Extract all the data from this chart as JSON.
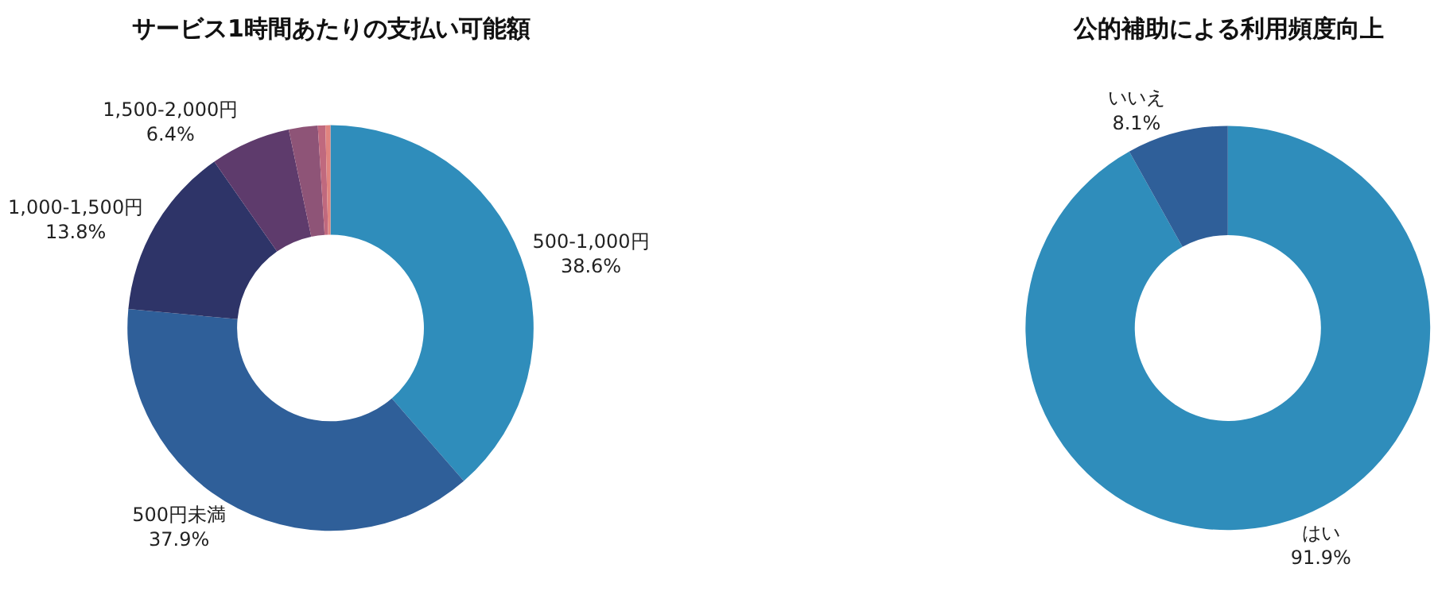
{
  "chart_data": [
    {
      "type": "donut",
      "title": "サービス1時間あたりの支払い可能額",
      "categories": [
        "500-1,000円",
        "500円未満",
        "1,000-1,500円",
        "1,500-2,000円",
        null,
        null,
        null
      ],
      "values": [
        38.6,
        37.9,
        13.8,
        6.4,
        2.3,
        0.6,
        0.4
      ],
      "value_labels": [
        "38.6%",
        "37.9%",
        "13.8%",
        "6.4%",
        null,
        null,
        null
      ],
      "colors": [
        "#2f8dbb",
        "#2f5f99",
        "#2e3468",
        "#5e3b6c",
        "#8e5477",
        "#c0697e",
        "#e0847f"
      ],
      "legend": false
    },
    {
      "type": "donut",
      "title": "公的補助による利用頻度向上",
      "categories": [
        "はい",
        "いいえ"
      ],
      "values": [
        91.9,
        8.1
      ],
      "value_labels": [
        "91.9%",
        "8.1%"
      ],
      "colors": [
        "#2f8dbb",
        "#2f5f99"
      ],
      "legend": false
    }
  ]
}
